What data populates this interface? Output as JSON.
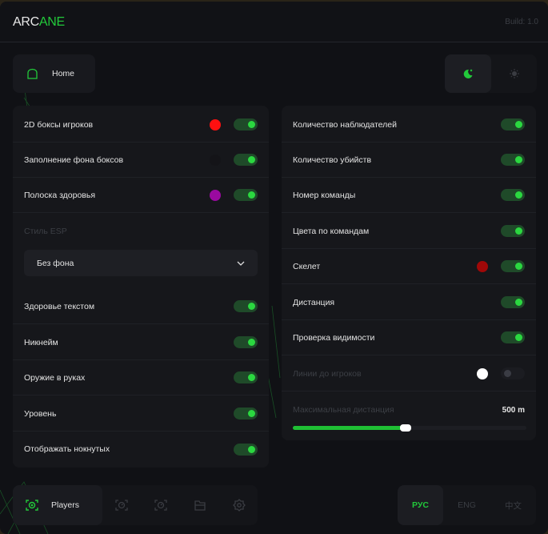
{
  "header": {
    "logo_a": "ARC",
    "logo_b": "ANE",
    "build": "Build: 1.0"
  },
  "home": {
    "label": "Home"
  },
  "left": {
    "rows": [
      {
        "label": "2D боксы игроков",
        "color": "#ff1010",
        "on": true
      },
      {
        "label": "Заполнение фона боксов",
        "color": "#141418",
        "on": true
      },
      {
        "label": "Полоска здоровья",
        "color": "#9a0aa0",
        "on": true
      }
    ],
    "style_label": "Стиль ESP",
    "style_value": "Без фона",
    "rows2": [
      {
        "label": "Здоровье текстом",
        "on": true
      },
      {
        "label": "Никнейм",
        "on": true
      },
      {
        "label": "Оружие в руках",
        "on": true
      },
      {
        "label": "Уровень",
        "on": true
      },
      {
        "label": "Отображать нокнутых",
        "on": true
      }
    ]
  },
  "right": {
    "rows": [
      {
        "label": "Количество наблюдателей",
        "on": true
      },
      {
        "label": "Количество убийств",
        "on": true
      },
      {
        "label": "Номер команды",
        "on": true
      },
      {
        "label": "Цвета по командам",
        "on": true
      },
      {
        "label": "Скелет",
        "color": "#a00808",
        "on": true
      },
      {
        "label": "Дистанция",
        "on": true
      },
      {
        "label": "Проверка видимости",
        "on": true
      },
      {
        "label": "Линии до игроков",
        "color": "#ffffff",
        "on": false,
        "disabled": true
      }
    ],
    "distance": {
      "label": "Максимальная дистанция",
      "value": "500 m",
      "percent": 48
    }
  },
  "tabs": {
    "active": "Players",
    "icons": [
      "aim-icon",
      "aim-icon",
      "folder-icon",
      "gear-icon"
    ]
  },
  "langs": [
    "РУС",
    "ENG",
    "中文"
  ],
  "accent": "#22c93a"
}
